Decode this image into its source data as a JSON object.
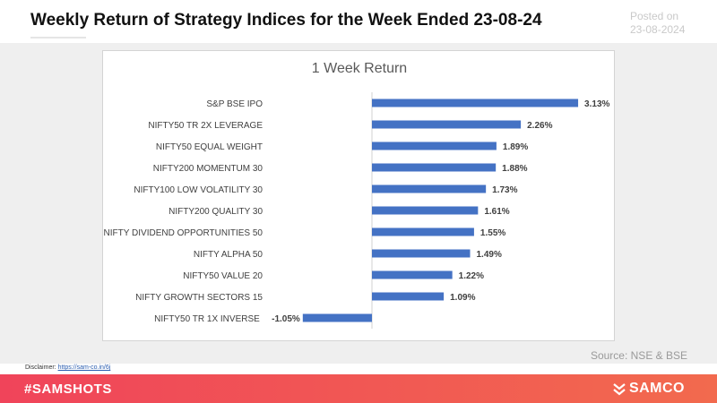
{
  "header": {
    "title": "Weekly Return of Strategy Indices for the Week Ended 23-08-24",
    "posted_label": "Posted on",
    "posted_date": "23-08-2024"
  },
  "chart_data": {
    "type": "bar",
    "orientation": "horizontal",
    "title": "1 Week Return",
    "categories": [
      "S&P BSE IPO",
      "NIFTY50 TR 2X LEVERAGE",
      "NIFTY50 EQUAL WEIGHT",
      "NIFTY200 MOMENTUM 30",
      "NIFTY100 LOW VOLATILITY 30",
      "NIFTY200 QUALITY 30",
      "NIFTY DIVIDEND OPPORTUNITIES 50",
      "NIFTY ALPHA 50",
      "NIFTY50 VALUE 20",
      "NIFTY GROWTH SECTORS 15",
      "NIFTY50 TR 1X INVERSE"
    ],
    "values": [
      3.13,
      2.26,
      1.89,
      1.88,
      1.73,
      1.61,
      1.55,
      1.49,
      1.22,
      1.09,
      -1.05
    ],
    "value_labels": [
      "3.13%",
      "2.26%",
      "1.89%",
      "1.88%",
      "1.73%",
      "1.61%",
      "1.55%",
      "1.49%",
      "1.22%",
      "1.09%",
      "-1.05%"
    ],
    "unit": "%",
    "bar_color": "#4472c4",
    "grid": false,
    "legend": "none"
  },
  "source": "Source: NSE & BSE",
  "disclaimer": {
    "label": "Disclaimer: ",
    "link": "https://sam-co.in/6j"
  },
  "footer": {
    "hashtag": "#SAMSHOTS",
    "brand": "SAMCO",
    "logo_icon": "samco-logo-icon",
    "colors": {
      "start": "#f0445a",
      "end": "#f26a4e"
    }
  }
}
